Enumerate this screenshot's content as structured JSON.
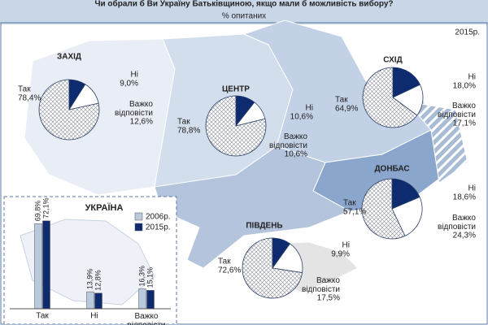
{
  "header": {
    "title": "Чи обрали б Ви Україну Батьківщиною, якщо мали б можливість вибору?",
    "subtitle": "% опитаних",
    "year": "2015р."
  },
  "regions": [
    {
      "name": "ЗАХІД",
      "answers": [
        {
          "label": "Так",
          "value": 78.4,
          "value_label": "78,4%"
        },
        {
          "label": "Ні",
          "value": 9.0,
          "value_label": "9,0%"
        },
        {
          "label": "Важко відповісти",
          "value": 12.6,
          "value_label": "12,6%"
        }
      ]
    },
    {
      "name": "ЦЕНТР",
      "answers": [
        {
          "label": "Так",
          "value": 78.8,
          "value_label": "78,8%"
        },
        {
          "label": "Ні",
          "value": 10.6,
          "value_label": "10,6%"
        },
        {
          "label": "Важко відповісти",
          "value": 10.6,
          "value_label": "10,6%"
        }
      ]
    },
    {
      "name": "СХІД",
      "answers": [
        {
          "label": "Так",
          "value": 64.9,
          "value_label": "64,9%"
        },
        {
          "label": "Ні",
          "value": 18.0,
          "value_label": "18,0%"
        },
        {
          "label": "Важко відповісти",
          "value": 17.1,
          "value_label": "17,1%"
        }
      ]
    },
    {
      "name": "ДОНБАС",
      "answers": [
        {
          "label": "Так",
          "value": 57.1,
          "value_label": "57,1%"
        },
        {
          "label": "Ні",
          "value": 18.6,
          "value_label": "18,6%"
        },
        {
          "label": "Важко відповісти",
          "value": 24.3,
          "value_label": "24,3%"
        }
      ]
    },
    {
      "name": "ПІВДЕНЬ",
      "answers": [
        {
          "label": "Так",
          "value": 72.6,
          "value_label": "72,6%"
        },
        {
          "label": "Ні",
          "value": 9.9,
          "value_label": "9,9%"
        },
        {
          "label": "Важко відповісти",
          "value": 17.5,
          "value_label": "17,5%"
        }
      ]
    }
  ],
  "ukraine": {
    "title": "УКРАЇНА",
    "categories": [
      "Так",
      "Ні",
      "Важко відповісти"
    ],
    "series": [
      {
        "name": "2006р.",
        "color": "#b9c9de",
        "values": [
          69.8,
          13.9,
          16.3
        ],
        "value_labels": [
          "69,8%",
          "13,9%",
          "16,3%"
        ]
      },
      {
        "name": "2015р.",
        "color": "#0d2b6e",
        "values": [
          72.1,
          12.8,
          15.1
        ],
        "value_labels": [
          "72,1%",
          "12,8%",
          "15,1%"
        ]
      }
    ]
  }
}
